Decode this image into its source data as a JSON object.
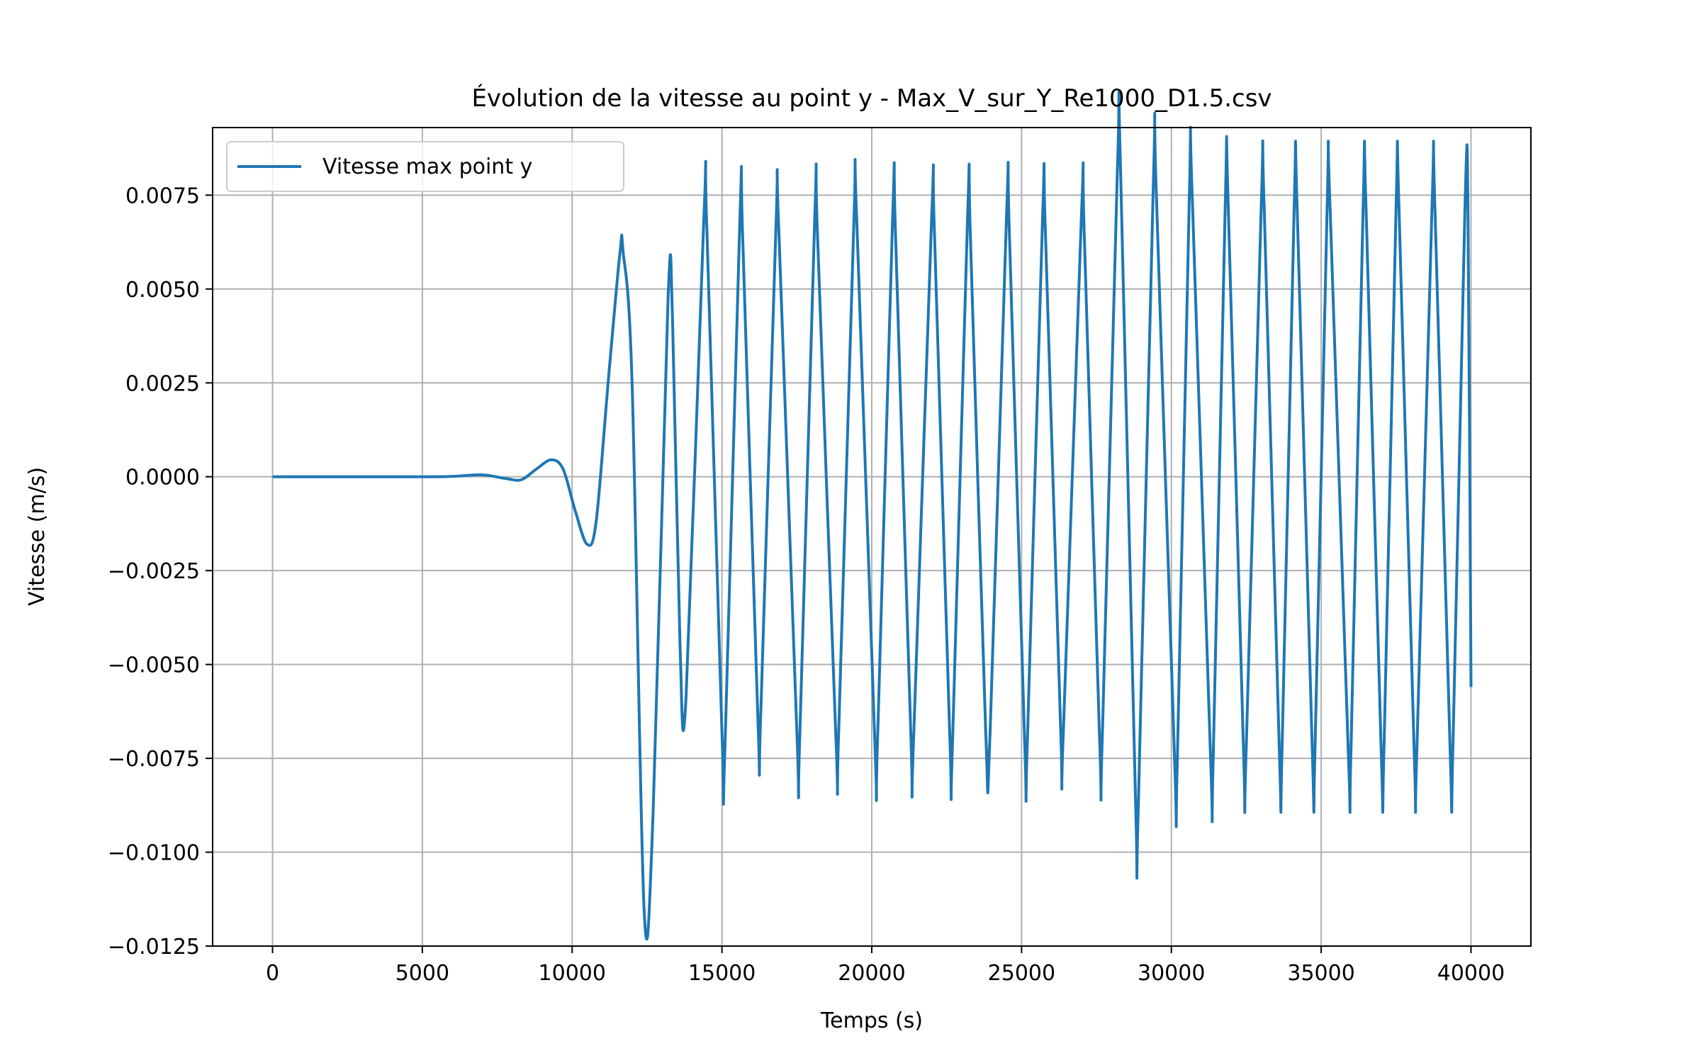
{
  "chart_data": {
    "type": "line",
    "title": "Évolution de la vitesse au point y - Max_V_sur_Y_Re1000_D1.5.csv",
    "xlabel": "Temps (s)",
    "ylabel": "Vitesse (m/s)",
    "xlim": [
      -2000,
      42000
    ],
    "ylim": [
      -0.0125,
      0.0093
    ],
    "xticks": [
      0,
      5000,
      10000,
      15000,
      20000,
      25000,
      30000,
      35000,
      40000
    ],
    "xtick_labels": [
      "0",
      "5000",
      "10000",
      "15000",
      "20000",
      "25000",
      "30000",
      "35000",
      "40000"
    ],
    "yticks": [
      -0.0125,
      -0.01,
      -0.0075,
      -0.005,
      -0.0025,
      0,
      0.0025,
      0.005,
      0.0075
    ],
    "ytick_labels": [
      "−0.0125",
      "−0.0100",
      "−0.0075",
      "−0.0050",
      "−0.0025",
      "0.0000",
      "0.0025",
      "0.0050",
      "0.0075"
    ],
    "grid": true,
    "legend_position": "top-left",
    "series": [
      {
        "name": "Vitesse max point y",
        "color": "#1f77b4",
        "points": [
          [
            0,
            0
          ],
          [
            5000,
            0
          ],
          [
            6000,
            1e-05
          ],
          [
            7000,
            5e-05
          ],
          [
            7800,
            -5e-05
          ],
          [
            8300,
            -8e-05
          ],
          [
            8800,
            0.0002
          ],
          [
            9300,
            0.00045
          ],
          [
            9700,
            0.0002
          ],
          [
            10100,
            -0.0009
          ],
          [
            10500,
            -0.0018
          ],
          [
            10800,
            -0.0012
          ],
          [
            11200,
            0.0025
          ],
          [
            11600,
            0.006
          ],
          [
            11700,
            0.006
          ],
          [
            12000,
            0.0025
          ],
          [
            12400,
            -0.0115
          ],
          [
            12700,
            -0.009
          ],
          [
            13200,
            0.0047
          ],
          [
            13350,
            0.0042
          ],
          [
            13600,
            -0.0045
          ],
          [
            13800,
            -0.0059
          ],
          [
            14400,
            0.007
          ],
          [
            14500,
            0.0065
          ],
          [
            15000,
            -0.0068
          ],
          [
            15100,
            -0.0072
          ],
          [
            15600,
            0.0069
          ],
          [
            15700,
            0.0062
          ],
          [
            16200,
            -0.0065
          ],
          [
            16300,
            -0.0062
          ],
          [
            16800,
            0.0066
          ],
          [
            16900,
            0.0065
          ],
          [
            17500,
            -0.0068
          ],
          [
            17600,
            -0.0069
          ],
          [
            18100,
            0.007
          ],
          [
            18200,
            0.0062
          ],
          [
            18800,
            -0.0069
          ],
          [
            18900,
            -0.0067
          ],
          [
            19400,
            0.0067
          ],
          [
            19500,
            0.0068
          ],
          [
            20100,
            -0.007
          ],
          [
            20200,
            -0.0068
          ],
          [
            20700,
            0.007
          ],
          [
            20800,
            0.0063
          ],
          [
            21300,
            -0.0068
          ],
          [
            21400,
            -0.0069
          ],
          [
            22000,
            0.0069
          ],
          [
            22100,
            0.0063
          ],
          [
            22600,
            -0.0068
          ],
          [
            22700,
            -0.007
          ],
          [
            23200,
            0.007
          ],
          [
            23300,
            0.0062
          ],
          [
            23800,
            -0.0067
          ],
          [
            23950,
            -0.0068
          ],
          [
            24500,
            0.007
          ],
          [
            24600,
            0.0063
          ],
          [
            25100,
            -0.007
          ],
          [
            25200,
            -0.0069
          ],
          [
            25700,
            0.0069
          ],
          [
            25800,
            0.0064
          ],
          [
            26300,
            -0.0066
          ],
          [
            26400,
            -0.0067
          ],
          [
            27000,
            0.007
          ],
          [
            27100,
            0.0063
          ],
          [
            27600,
            -0.0069
          ],
          [
            27700,
            -0.0068
          ],
          [
            28200,
            0.0082
          ],
          [
            28300,
            0.0083
          ],
          [
            28800,
            -0.0085
          ],
          [
            28900,
            -0.0087
          ],
          [
            29400,
            0.0079
          ],
          [
            29500,
            0.0075
          ],
          [
            30100,
            -0.0074
          ],
          [
            30200,
            -0.0075
          ],
          [
            30600,
            0.0075
          ],
          [
            30700,
            0.0074
          ],
          [
            31300,
            -0.0073
          ],
          [
            31400,
            -0.0074
          ],
          [
            31800,
            0.0073
          ],
          [
            31900,
            0.0072
          ],
          [
            32400,
            -0.0071
          ],
          [
            32500,
            -0.0072
          ],
          [
            33000,
            0.0072
          ],
          [
            33100,
            0.0071
          ],
          [
            33600,
            -0.0072
          ],
          [
            33700,
            -0.0071
          ],
          [
            34100,
            0.0072
          ],
          [
            34200,
            0.0071
          ],
          [
            34700,
            -0.0072
          ],
          [
            34800,
            -0.0071
          ],
          [
            35200,
            0.0072
          ],
          [
            35300,
            0.0071
          ],
          [
            35900,
            -0.0072
          ],
          [
            36000,
            -0.0071
          ],
          [
            36400,
            0.0072
          ],
          [
            36500,
            0.0071
          ],
          [
            37000,
            -0.0072
          ],
          [
            37100,
            -0.0071
          ],
          [
            37500,
            0.0072
          ],
          [
            37600,
            0.0071
          ],
          [
            38100,
            -0.0072
          ],
          [
            38200,
            -0.0071
          ],
          [
            38700,
            0.0072
          ],
          [
            38800,
            0.0071
          ],
          [
            39300,
            -0.0072
          ],
          [
            39400,
            -0.0071
          ],
          [
            39800,
            0.0072
          ],
          [
            39900,
            0.0071
          ],
          [
            40000,
            -0.0056
          ]
        ]
      }
    ]
  }
}
